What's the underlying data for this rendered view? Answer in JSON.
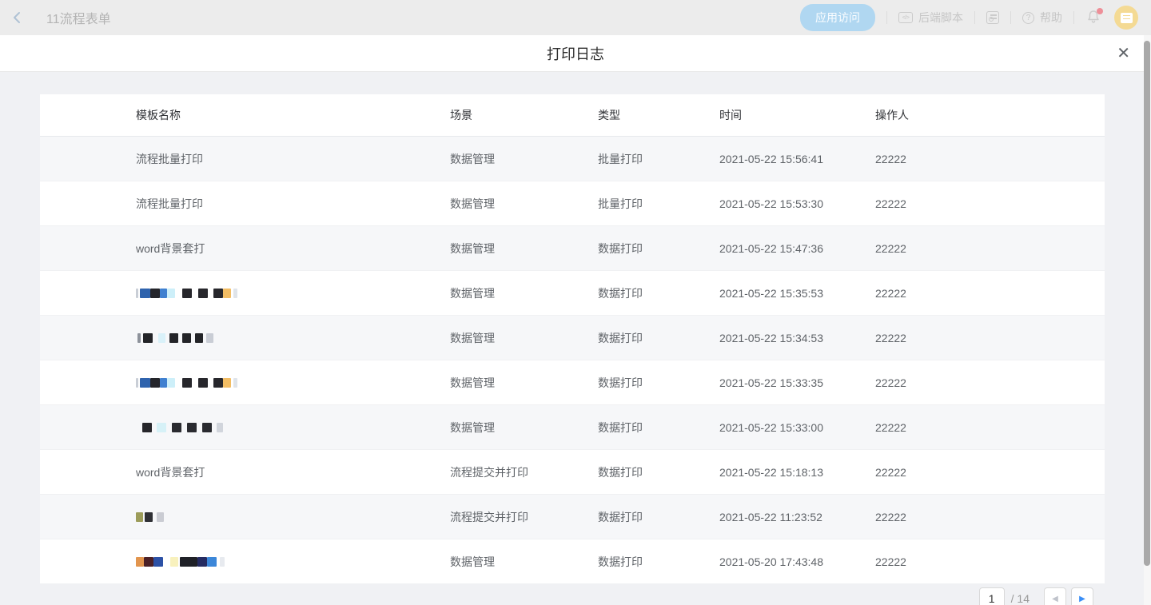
{
  "topbar": {
    "title": "11流程表单",
    "app_access": "应用访问",
    "backend_script": "后端脚本",
    "backend_script_icon": "</>",
    "help": "帮助",
    "help_icon": "?"
  },
  "modal": {
    "title": "打印日志",
    "close_icon": "✕"
  },
  "table": {
    "columns": [
      "模板名称",
      "场景",
      "类型",
      "时间",
      "操作人"
    ],
    "rows": [
      {
        "name": "流程批量打印",
        "scene": "数据管理",
        "type": "批量打印",
        "time": "2021-05-22 15:56:41",
        "operator": "22222"
      },
      {
        "name": "流程批量打印",
        "scene": "数据管理",
        "type": "批量打印",
        "time": "2021-05-22 15:53:30",
        "operator": "22222"
      },
      {
        "name": "word背景套打",
        "scene": "数据管理",
        "type": "数据打印",
        "time": "2021-05-22 15:47:36",
        "operator": "22222"
      },
      {
        "name": "",
        "redacted": [
          [
            "#c9ced6",
            3,
            0
          ],
          [
            "#2f63ad",
            13,
            2
          ],
          [
            "#24252b",
            12,
            0
          ],
          [
            "#3f80d0",
            9,
            0
          ],
          [
            "#cdeff9",
            10,
            0
          ],
          [
            "#27272c",
            12,
            9
          ],
          [
            "#27272c",
            12,
            8
          ],
          [
            "#27272c",
            12,
            7
          ],
          [
            "#f2bd64",
            10,
            0
          ],
          [
            "#dfe4ea",
            5,
            3
          ]
        ],
        "scene": "数据管理",
        "type": "数据打印",
        "time": "2021-05-22 15:35:53",
        "operator": "22222"
      },
      {
        "name": "",
        "redacted": [
          [
            "#8d929b",
            4,
            2
          ],
          [
            "#232428",
            12,
            3
          ],
          [
            "#d9f1f9",
            9,
            7
          ],
          [
            "#232428",
            11,
            5
          ],
          [
            "#232428",
            11,
            5
          ],
          [
            "#232428",
            10,
            5
          ],
          [
            "#c9cdd5",
            9,
            4
          ]
        ],
        "scene": "数据管理",
        "type": "数据打印",
        "time": "2021-05-22 15:34:53",
        "operator": "22222"
      },
      {
        "name": "",
        "redacted": [
          [
            "#c9ced6",
            3,
            0
          ],
          [
            "#2f63ad",
            13,
            2
          ],
          [
            "#24252b",
            12,
            0
          ],
          [
            "#3f80d0",
            9,
            0
          ],
          [
            "#cdeff9",
            10,
            0
          ],
          [
            "#27272c",
            12,
            9
          ],
          [
            "#27272c",
            12,
            8
          ],
          [
            "#27272c",
            12,
            7
          ],
          [
            "#f2bd64",
            10,
            0
          ],
          [
            "#dfe4ea",
            5,
            3
          ]
        ],
        "scene": "数据管理",
        "type": "数据打印",
        "time": "2021-05-22 15:33:35",
        "operator": "22222"
      },
      {
        "name": "",
        "redacted": [
          [
            "#26262b",
            12,
            8
          ],
          [
            "#d6f1f7",
            12,
            6
          ],
          [
            "#2a2b30",
            12,
            7
          ],
          [
            "#2a2b30",
            12,
            7
          ],
          [
            "#2a2b30",
            12,
            7
          ],
          [
            "#d1d5dc",
            8,
            6
          ]
        ],
        "scene": "数据管理",
        "type": "数据打印",
        "time": "2021-05-22 15:33:00",
        "operator": "22222"
      },
      {
        "name": "word背景套打",
        "scene": "流程提交并打印",
        "type": "数据打印",
        "time": "2021-05-22 15:18:13",
        "operator": "22222"
      },
      {
        "name": "",
        "redacted": [
          [
            "#9c9c5a",
            9,
            0
          ],
          [
            "#2f3035",
            10,
            2
          ],
          [
            "#caccd3",
            9,
            5
          ]
        ],
        "scene": "流程提交并打印",
        "type": "数据打印",
        "time": "2021-05-22 11:23:52",
        "operator": "22222"
      },
      {
        "name": "",
        "redacted": [
          [
            "#e2954e",
            10,
            0
          ],
          [
            "#4b2026",
            12,
            0
          ],
          [
            "#2c51a6",
            12,
            0
          ],
          [
            "#f8f1bd",
            10,
            9
          ],
          [
            "#1f2127",
            22,
            2
          ],
          [
            "#242b62",
            12,
            0
          ],
          [
            "#3c87d9",
            12,
            0
          ],
          [
            "#e7eaef",
            6,
            4
          ]
        ],
        "scene": "数据管理",
        "type": "数据打印",
        "time": "2021-05-20 17:43:48",
        "operator": "22222"
      }
    ]
  },
  "pagination": {
    "page": "1",
    "total": "/ 14",
    "prev_icon": "◀",
    "next_icon": "▶"
  },
  "colors": {
    "accent_blue": "#3a8ef6",
    "stripe": "#f6f7f9",
    "notification_dot": "#ee8f98",
    "avatar_bg": "#f4da94"
  }
}
